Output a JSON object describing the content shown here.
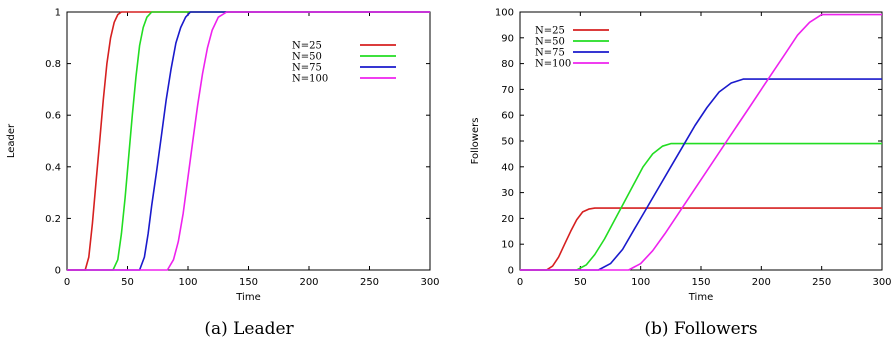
{
  "chart_data": [
    {
      "type": "line",
      "caption": "(a) Leader",
      "xlabel": "Time",
      "ylabel": "Leader",
      "xlim": [
        0,
        300
      ],
      "ylim": [
        0,
        1
      ],
      "xticks": [
        "0",
        "50",
        "100",
        "150",
        "200",
        "250",
        "300"
      ],
      "yticks": [
        "0",
        "0.2",
        "0.4",
        "0.6",
        "0.8",
        "1"
      ],
      "grid": false,
      "legend_position": "top-right",
      "series": [
        {
          "name": "N=25",
          "color": "#d62020",
          "x": [
            0,
            15,
            18,
            21,
            24,
            27,
            30,
            33,
            36,
            39,
            42,
            45,
            300
          ],
          "y": [
            0,
            0,
            0.05,
            0.18,
            0.34,
            0.5,
            0.66,
            0.8,
            0.9,
            0.96,
            0.99,
            1,
            1
          ]
        },
        {
          "name": "N=50",
          "color": "#22dd22",
          "x": [
            0,
            38,
            42,
            45,
            48,
            51,
            54,
            57,
            60,
            63,
            66,
            70,
            300
          ],
          "y": [
            0,
            0,
            0.04,
            0.14,
            0.28,
            0.44,
            0.6,
            0.75,
            0.87,
            0.94,
            0.98,
            1,
            1
          ]
        },
        {
          "name": "N=75",
          "color": "#1a1acc",
          "x": [
            0,
            60,
            64,
            67,
            70,
            74,
            78,
            82,
            86,
            90,
            94,
            98,
            102,
            300
          ],
          "y": [
            0,
            0,
            0.05,
            0.14,
            0.25,
            0.38,
            0.52,
            0.66,
            0.78,
            0.88,
            0.94,
            0.98,
            1,
            1
          ]
        },
        {
          "name": "N=100",
          "color": "#ee22ee",
          "x": [
            0,
            83,
            88,
            92,
            96,
            100,
            104,
            108,
            112,
            116,
            120,
            125,
            132,
            300
          ],
          "y": [
            0,
            0,
            0.04,
            0.11,
            0.22,
            0.36,
            0.5,
            0.64,
            0.76,
            0.86,
            0.93,
            0.98,
            1,
            1
          ]
        }
      ]
    },
    {
      "type": "line",
      "caption": "(b) Followers",
      "xlabel": "Time",
      "ylabel": "Followers",
      "xlim": [
        0,
        300
      ],
      "ylim": [
        0,
        100
      ],
      "xticks": [
        "0",
        "50",
        "100",
        "150",
        "200",
        "250",
        "300"
      ],
      "yticks": [
        "0",
        "10",
        "20",
        "30",
        "40",
        "50",
        "60",
        "70",
        "80",
        "90",
        "100"
      ],
      "grid": false,
      "legend_position": "top-left",
      "series": [
        {
          "name": "N=25",
          "color": "#d62020",
          "x": [
            0,
            22,
            27,
            32,
            37,
            42,
            47,
            52,
            57,
            62,
            67,
            300
          ],
          "y": [
            0,
            0,
            1.5,
            5,
            10,
            15,
            19.5,
            22.5,
            23.6,
            24,
            24,
            24
          ]
        },
        {
          "name": "N=50",
          "color": "#22dd22",
          "x": [
            0,
            47,
            55,
            62,
            70,
            78,
            86,
            94,
            102,
            110,
            118,
            125,
            130,
            300
          ],
          "y": [
            0,
            0,
            2,
            6,
            12,
            19,
            26,
            33,
            40,
            45,
            48,
            49,
            49,
            49
          ]
        },
        {
          "name": "N=75",
          "color": "#1a1acc",
          "x": [
            0,
            65,
            75,
            85,
            95,
            105,
            115,
            125,
            135,
            145,
            155,
            165,
            175,
            185,
            192,
            300
          ],
          "y": [
            0,
            0,
            2.5,
            8,
            16,
            24,
            32,
            40,
            48,
            56,
            63,
            69,
            72.5,
            74,
            74,
            74
          ]
        },
        {
          "name": "N=100",
          "color": "#ee22ee",
          "x": [
            0,
            90,
            100,
            110,
            120,
            130,
            140,
            150,
            160,
            170,
            180,
            190,
            200,
            210,
            220,
            230,
            240,
            250,
            300
          ],
          "y": [
            0,
            0,
            2.5,
            7.5,
            14,
            21,
            28,
            35,
            42,
            49,
            56,
            63,
            70,
            77,
            84,
            91,
            96,
            99,
            99
          ]
        }
      ]
    }
  ]
}
